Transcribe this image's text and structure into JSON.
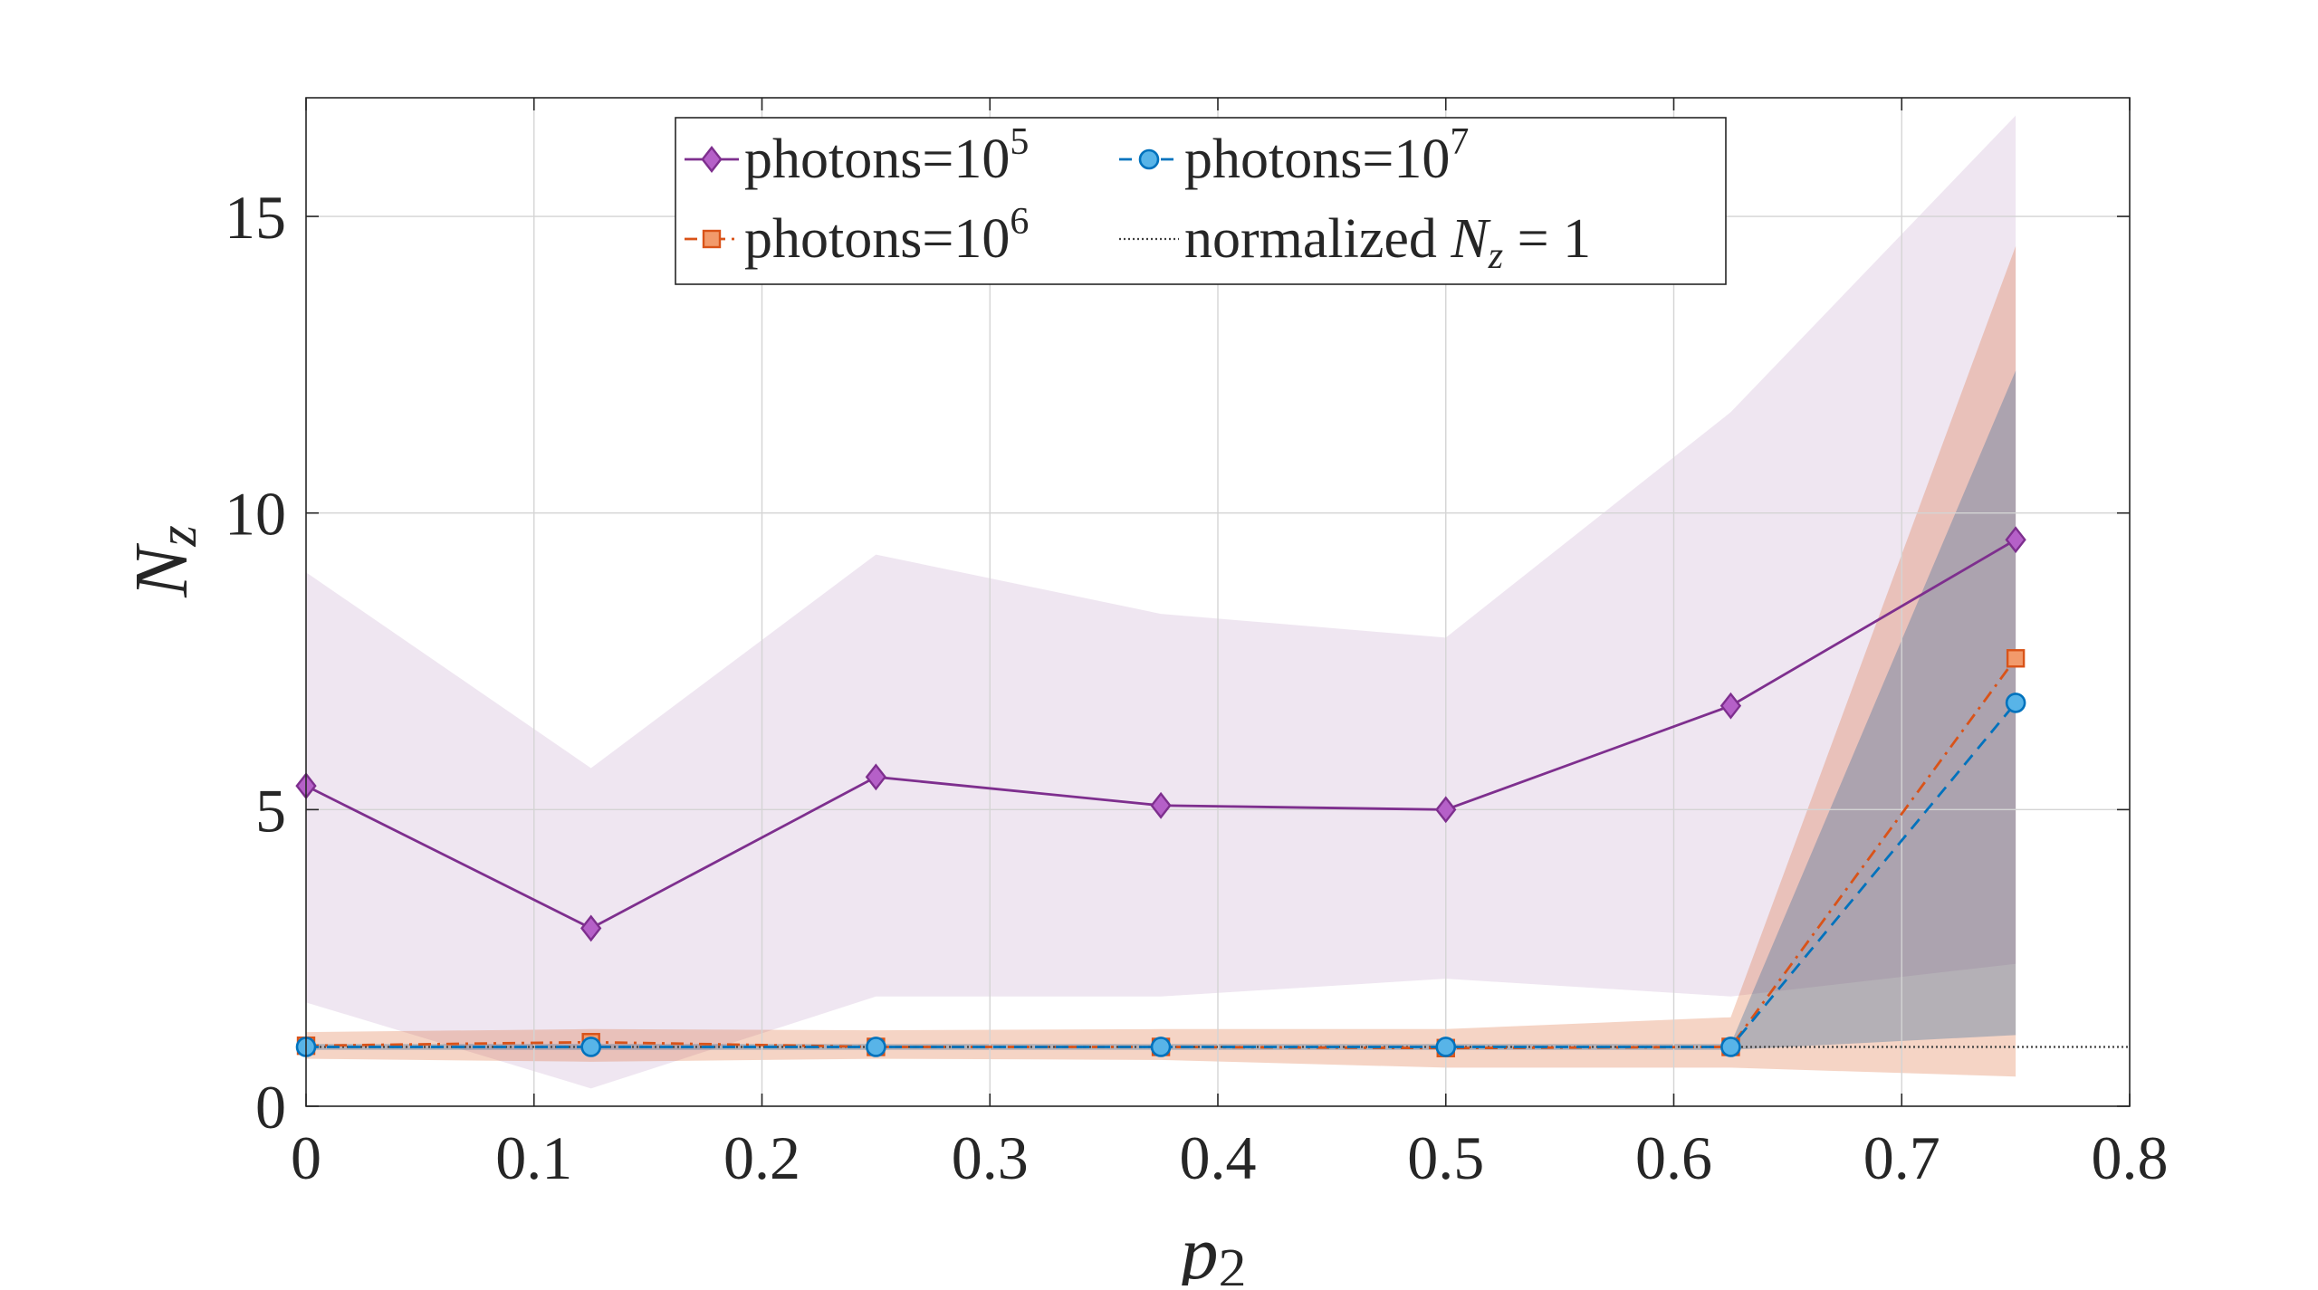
{
  "chart_data": {
    "type": "line",
    "xlabel": "p",
    "xlabel_sub": "2",
    "ylabel": "N",
    "ylabel_sub": "z",
    "xlim": [
      0,
      0.8
    ],
    "ylim": [
      0,
      17
    ],
    "xticks": [
      0,
      0.1,
      0.2,
      0.3,
      0.4,
      0.5,
      0.6,
      0.7,
      0.8
    ],
    "xtick_labels": [
      "0",
      "0.1",
      "0.2",
      "0.3",
      "0.4",
      "0.5",
      "0.6",
      "0.7",
      "0.8"
    ],
    "yticks": [
      0,
      5,
      10,
      15
    ],
    "ytick_labels": [
      "0",
      "5",
      "10",
      "15"
    ],
    "grid": true,
    "legend_position": "top-center",
    "x": [
      0,
      0.125,
      0.25,
      0.375,
      0.5,
      0.625,
      0.75
    ],
    "series": [
      {
        "name": "photons=10^5",
        "legend_base": "photons=10",
        "legend_exp": "5",
        "color": "#7E2F8E",
        "fill_color": "#7E2F8E",
        "fill_opacity": 0.12,
        "marker": "diamond",
        "dash": "solid",
        "values": [
          5.4,
          3.0,
          5.55,
          5.07,
          5.0,
          6.75,
          9.55
        ],
        "band_upper": [
          9.0,
          5.7,
          9.3,
          8.3,
          7.9,
          11.7,
          16.7
        ],
        "band_lower": [
          1.75,
          0.3,
          1.85,
          1.85,
          2.15,
          1.85,
          2.4
        ]
      },
      {
        "name": "photons=10^6",
        "legend_base": "photons=10",
        "legend_exp": "6",
        "color": "#D95319",
        "fill_color": "#D95319",
        "fill_opacity": 0.25,
        "marker": "square",
        "dash": "dashdot",
        "values": [
          1.02,
          1.08,
          1.0,
          1.0,
          0.98,
          1.0,
          7.55
        ],
        "band_upper": [
          1.25,
          1.3,
          1.28,
          1.3,
          1.3,
          1.5,
          14.5
        ],
        "band_lower": [
          0.8,
          0.75,
          0.8,
          0.78,
          0.65,
          0.65,
          0.5
        ]
      },
      {
        "name": "photons=10^7",
        "legend_base": "photons=10",
        "legend_exp": "7",
        "color": "#0072BD",
        "fill_color": "#3C6E9A",
        "fill_opacity": 0.35,
        "marker": "circle",
        "dash": "dashed",
        "values": [
          1.0,
          1.0,
          1.0,
          1.0,
          1.0,
          1.0,
          6.8
        ],
        "band_upper": [
          1.05,
          1.05,
          1.05,
          1.05,
          1.05,
          1.05,
          12.4
        ],
        "band_lower": [
          0.95,
          0.95,
          0.95,
          0.95,
          0.95,
          0.95,
          1.2
        ]
      }
    ],
    "reference_line": {
      "name": "normalized N_z = 1",
      "legend_text": "normalized ",
      "legend_var": "N",
      "legend_sub": "z",
      "legend_rest": " = 1",
      "value": 1,
      "color": "#404040"
    }
  }
}
